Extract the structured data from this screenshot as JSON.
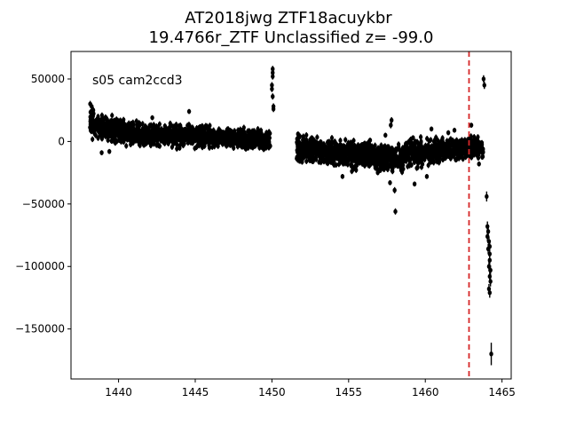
{
  "chart_data": {
    "type": "scatter",
    "title": "AT2018jwg  ZTF18acuykbr",
    "subtitle": "19.4766r_ZTF Unclassified z= -99.0",
    "annotation": "s05 cam2ccd3",
    "xlabel": "",
    "ylabel": "",
    "xlim": [
      1436.9,
      1465.6
    ],
    "ylim": [
      -190000,
      72000
    ],
    "x_ticks": [
      1440,
      1445,
      1450,
      1455,
      1460,
      1465
    ],
    "y_ticks": [
      50000,
      0,
      -50000,
      -100000,
      -150000
    ],
    "y_tick_labels": [
      "50000",
      "0",
      "−50000",
      "−100000",
      "−150000"
    ],
    "marker_color": "#000000",
    "vline": {
      "x": 1462.85,
      "color": "#d62728",
      "style": "dashed"
    },
    "segments": [
      {
        "x_start": 1438.1,
        "x_end": 1441.0,
        "y_start": 14000,
        "y_end": 6000,
        "spread": 13000,
        "count": 380,
        "seed": 11
      },
      {
        "x_start": 1441.0,
        "x_end": 1446.0,
        "y_start": 6000,
        "y_end": 4000,
        "spread": 12000,
        "count": 620,
        "seed": 23
      },
      {
        "x_start": 1446.0,
        "x_end": 1449.9,
        "y_start": 3000,
        "y_end": 1000,
        "spread": 10000,
        "count": 480,
        "seed": 37
      },
      {
        "x_start": 1451.6,
        "x_end": 1454.5,
        "y_start": -6000,
        "y_end": -9000,
        "spread": 13000,
        "count": 380,
        "seed": 41
      },
      {
        "x_start": 1454.5,
        "x_end": 1458.5,
        "y_start": -9000,
        "y_end": -14000,
        "spread": 15000,
        "count": 520,
        "seed": 53
      },
      {
        "x_start": 1458.5,
        "x_end": 1461.2,
        "y_start": -12000,
        "y_end": -6000,
        "spread": 14000,
        "count": 360,
        "seed": 61
      },
      {
        "x_start": 1461.2,
        "x_end": 1463.8,
        "y_start": -6000,
        "y_end": -5000,
        "spread": 11000,
        "count": 340,
        "seed": 71
      }
    ],
    "points": [
      {
        "x": 1438.15,
        "y": 30000,
        "err": 2500
      },
      {
        "x": 1438.25,
        "y": 28000,
        "err": 2500
      },
      {
        "x": 1438.35,
        "y": 25000,
        "err": 2500
      },
      {
        "x": 1438.2,
        "y": 20000,
        "err": 2000
      },
      {
        "x": 1438.9,
        "y": -9000,
        "err": 2000
      },
      {
        "x": 1439.4,
        "y": -8000,
        "err": 2000
      },
      {
        "x": 1442.2,
        "y": 19000,
        "err": 2000
      },
      {
        "x": 1444.6,
        "y": 24000,
        "err": 2000
      },
      {
        "x": 1448.3,
        "y": -6000,
        "err": 2000
      },
      {
        "x": 1450.05,
        "y": 58000,
        "err": 2500
      },
      {
        "x": 1450.05,
        "y": 55000,
        "err": 2500
      },
      {
        "x": 1450.05,
        "y": 52000,
        "err": 2500
      },
      {
        "x": 1450.0,
        "y": 45000,
        "err": 2500
      },
      {
        "x": 1450.0,
        "y": 42000,
        "err": 2500
      },
      {
        "x": 1450.05,
        "y": 36000,
        "err": 2500
      },
      {
        "x": 1450.1,
        "y": 28000,
        "err": 2500
      },
      {
        "x": 1450.1,
        "y": 26000,
        "err": 2500
      },
      {
        "x": 1451.7,
        "y": 6000,
        "err": 2000
      },
      {
        "x": 1452.6,
        "y": 3000,
        "err": 2000
      },
      {
        "x": 1454.6,
        "y": -28000,
        "err": 2000
      },
      {
        "x": 1456.4,
        "y": 1000,
        "err": 2000
      },
      {
        "x": 1456.9,
        "y": -25000,
        "err": 2000
      },
      {
        "x": 1457.4,
        "y": 5000,
        "err": 2000
      },
      {
        "x": 1457.7,
        "y": -33000,
        "err": 2000
      },
      {
        "x": 1457.75,
        "y": 13000,
        "err": 2500
      },
      {
        "x": 1457.8,
        "y": 17000,
        "err": 2500
      },
      {
        "x": 1458.0,
        "y": -39000,
        "err": 2500
      },
      {
        "x": 1458.05,
        "y": -56000,
        "err": 2500
      },
      {
        "x": 1459.2,
        "y": 3000,
        "err": 2000
      },
      {
        "x": 1459.3,
        "y": -34000,
        "err": 2000
      },
      {
        "x": 1460.4,
        "y": 10000,
        "err": 2000
      },
      {
        "x": 1460.1,
        "y": -28000,
        "err": 2000
      },
      {
        "x": 1461.5,
        "y": 7000,
        "err": 2000
      },
      {
        "x": 1461.9,
        "y": 9000,
        "err": 2000
      },
      {
        "x": 1463.0,
        "y": 13000,
        "err": 2000
      },
      {
        "x": 1463.5,
        "y": -18000,
        "err": 2000
      },
      {
        "x": 1463.8,
        "y": 50000,
        "err": 3000
      },
      {
        "x": 1463.85,
        "y": 45000,
        "err": 3000
      },
      {
        "x": 1464.0,
        "y": -44000,
        "err": 4000
      },
      {
        "x": 1464.05,
        "y": -68000,
        "err": 4000
      },
      {
        "x": 1464.1,
        "y": -72000,
        "err": 4000
      },
      {
        "x": 1464.05,
        "y": -76000,
        "err": 4000
      },
      {
        "x": 1464.15,
        "y": -80000,
        "err": 4000
      },
      {
        "x": 1464.2,
        "y": -84000,
        "err": 4000
      },
      {
        "x": 1464.1,
        "y": -86000,
        "err": 4000
      },
      {
        "x": 1464.2,
        "y": -90000,
        "err": 4000
      },
      {
        "x": 1464.2,
        "y": -95000,
        "err": 4000
      },
      {
        "x": 1464.15,
        "y": -100000,
        "err": 4000
      },
      {
        "x": 1464.25,
        "y": -103000,
        "err": 4000
      },
      {
        "x": 1464.2,
        "y": -108000,
        "err": 4000
      },
      {
        "x": 1464.25,
        "y": -112000,
        "err": 4000
      },
      {
        "x": 1464.15,
        "y": -118000,
        "err": 4000
      },
      {
        "x": 1464.2,
        "y": -121000,
        "err": 4000
      },
      {
        "x": 1464.3,
        "y": -170000,
        "err": 9000
      }
    ]
  }
}
